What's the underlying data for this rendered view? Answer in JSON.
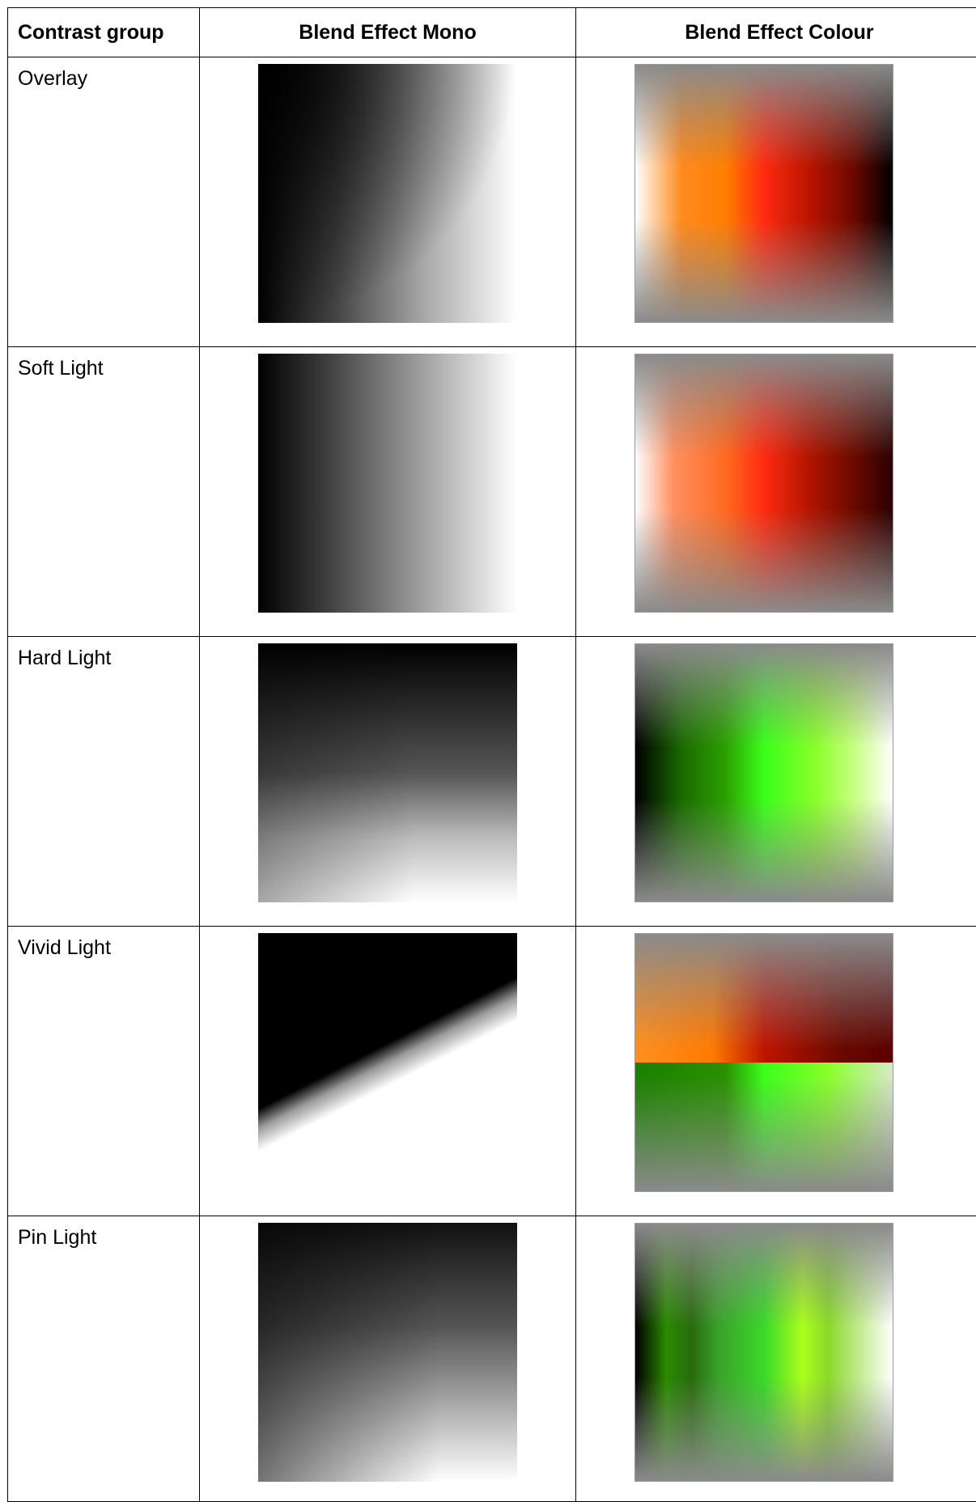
{
  "table": {
    "headers": {
      "group": "Contrast group",
      "mono": "Blend Effect Mono",
      "colour": "Blend Effect Colour"
    },
    "rows": [
      {
        "group": "Overlay"
      },
      {
        "group": "Soft Light"
      },
      {
        "group": "Hard Light"
      },
      {
        "group": "Vivid Light"
      },
      {
        "group": "Pin Light"
      }
    ]
  }
}
